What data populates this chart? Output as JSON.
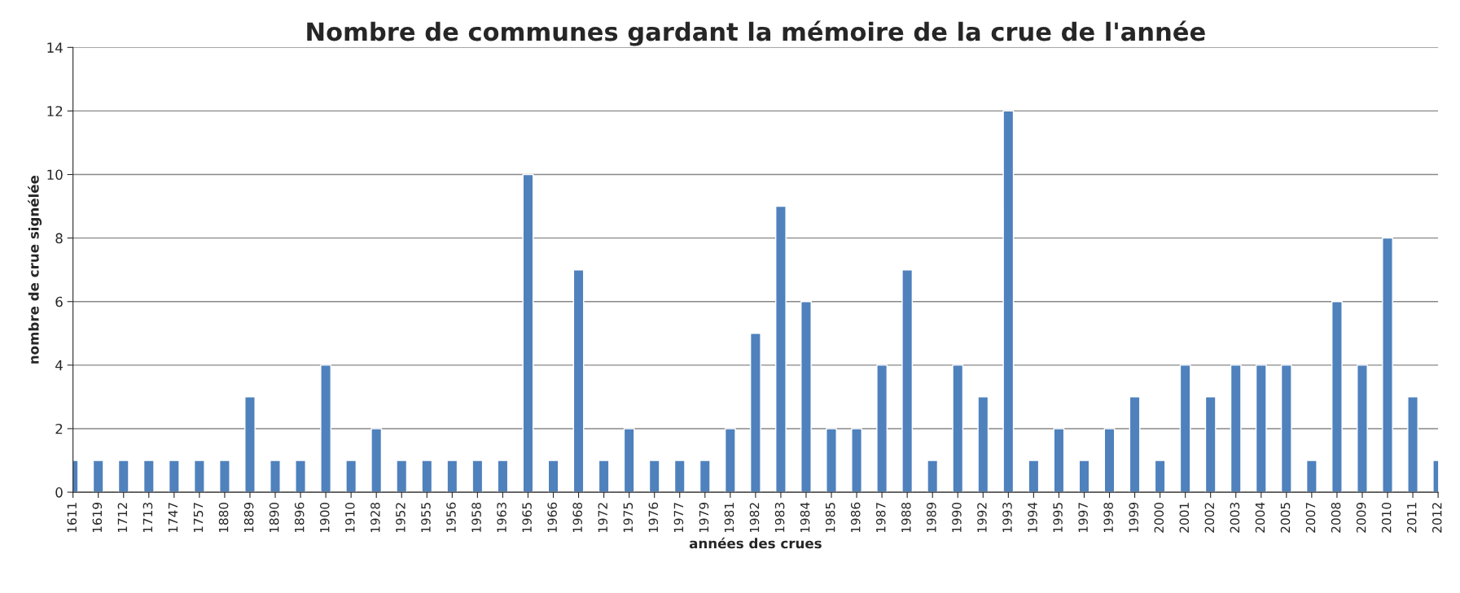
{
  "chart_data": {
    "type": "bar",
    "title": "Nombre de communes gardant la mémoire de la crue de l'année",
    "xlabel": "années des crues",
    "ylabel": "nombre de crue signélée",
    "categories": [
      "1611",
      "1619",
      "1712",
      "1713",
      "1747",
      "1757",
      "1880",
      "1889",
      "1890",
      "1896",
      "1900",
      "1910",
      "1928",
      "1952",
      "1955",
      "1956",
      "1958",
      "1963",
      "1965",
      "1966",
      "1968",
      "1972",
      "1975",
      "1976",
      "1977",
      "1979",
      "1981",
      "1982",
      "1983",
      "1984",
      "1985",
      "1986",
      "1987",
      "1988",
      "1989",
      "1990",
      "1992",
      "1993",
      "1994",
      "1995",
      "1997",
      "1998",
      "1999",
      "2000",
      "2001",
      "2002",
      "2003",
      "2004",
      "2005",
      "2007",
      "2008",
      "2009",
      "2010",
      "2011",
      "2012"
    ],
    "values": [
      1,
      1,
      1,
      1,
      1,
      1,
      1,
      3,
      1,
      1,
      4,
      1,
      2,
      1,
      1,
      1,
      1,
      1,
      10,
      1,
      7,
      1,
      2,
      1,
      1,
      1,
      2,
      5,
      9,
      6,
      2,
      2,
      4,
      7,
      1,
      4,
      3,
      12,
      1,
      2,
      1,
      2,
      3,
      1,
      4,
      3,
      4,
      4,
      4,
      1,
      6,
      4,
      8,
      3,
      1
    ],
    "color": "#4f81bd",
    "ylim": [
      0,
      14
    ],
    "yticks": [
      0,
      2,
      4,
      6,
      8,
      10,
      12,
      14
    ],
    "grid": "y"
  }
}
